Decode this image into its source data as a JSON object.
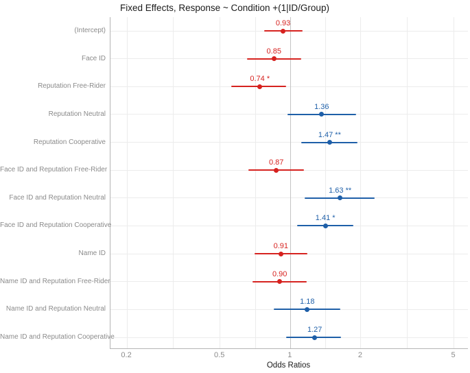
{
  "figure": {
    "title": "Fixed Effects, Response ~ Condition +(1|ID/Group)",
    "xlabel": "Odds Ratios"
  },
  "colors": {
    "or_below_1": "#d6221f",
    "or_above_1": "#1e5fa8",
    "gridline": "#ececec",
    "reference_line": "#c4c4c4",
    "axis_line": "#b4b4b4",
    "axis_text": "#8a8a8a",
    "title_text": "#1a1a1a"
  },
  "chart_data": {
    "type": "scatter",
    "subtype": "forest-dot-whisker",
    "title": "Fixed Effects, Response ~ Condition +(1|ID/Group)",
    "xlabel": "Odds Ratios",
    "ylabel": "",
    "xscale": "log10",
    "xlim": [
      0.17,
      5.74
    ],
    "x_major_ticks": [
      0.2,
      0.5,
      1,
      2,
      5
    ],
    "x_major_tick_labels": [
      "0.2",
      "0.5",
      "1",
      "2",
      "5"
    ],
    "x_minor_ticks": [
      0.3162,
      0.7071,
      1.4142,
      3.1623
    ],
    "reference_line_x": 1,
    "grid": true,
    "legend": "none",
    "categories": [
      "(Intercept)",
      "Face ID",
      "Reputation Free-Rider",
      "Reputation Neutral",
      "Reputation Cooperative",
      "Face ID and Reputation Free-Rider",
      "Face ID and Reputation Neutral",
      "Face ID and Reputation Cooperative",
      "Name ID",
      "Name ID and Reputation Free-Rider",
      "Name ID and Reputation Neutral",
      "Name ID and Reputation Cooperative"
    ],
    "points": [
      {
        "label": "(Intercept)",
        "or": 0.93,
        "ci_low": 0.77,
        "ci_high": 1.13,
        "display": "0.93",
        "significance": "",
        "direction": "below_1"
      },
      {
        "label": "Face ID",
        "or": 0.85,
        "ci_low": 0.65,
        "ci_high": 1.11,
        "display": "0.85",
        "significance": "",
        "direction": "below_1"
      },
      {
        "label": "Reputation Free-Rider",
        "or": 0.74,
        "ci_low": 0.56,
        "ci_high": 0.96,
        "display": "0.74 *",
        "significance": "*",
        "direction": "below_1"
      },
      {
        "label": "Reputation Neutral",
        "or": 1.36,
        "ci_low": 0.97,
        "ci_high": 1.91,
        "display": "1.36",
        "significance": "",
        "direction": "above_1"
      },
      {
        "label": "Reputation Cooperative",
        "or": 1.47,
        "ci_low": 1.11,
        "ci_high": 1.93,
        "display": "1.47 **",
        "significance": "**",
        "direction": "above_1"
      },
      {
        "label": "Face ID and Reputation Free-Rider",
        "or": 0.87,
        "ci_low": 0.66,
        "ci_high": 1.14,
        "display": "0.87",
        "significance": "",
        "direction": "below_1"
      },
      {
        "label": "Face ID and Reputation Neutral",
        "or": 1.63,
        "ci_low": 1.15,
        "ci_high": 2.29,
        "display": "1.63 **",
        "significance": "**",
        "direction": "above_1"
      },
      {
        "label": "Face ID and Reputation Cooperative",
        "or": 1.41,
        "ci_low": 1.07,
        "ci_high": 1.86,
        "display": "1.41 *",
        "significance": "*",
        "direction": "above_1"
      },
      {
        "label": "Name ID",
        "or": 0.91,
        "ci_low": 0.7,
        "ci_high": 1.18,
        "display": "0.91",
        "significance": "",
        "direction": "below_1"
      },
      {
        "label": "Name ID and Reputation Free-Rider",
        "or": 0.9,
        "ci_low": 0.69,
        "ci_high": 1.17,
        "display": "0.90",
        "significance": "",
        "direction": "below_1"
      },
      {
        "label": "Name ID and Reputation Neutral",
        "or": 1.18,
        "ci_low": 0.85,
        "ci_high": 1.63,
        "display": "1.18",
        "significance": "",
        "direction": "above_1"
      },
      {
        "label": "Name ID and Reputation Cooperative",
        "or": 1.27,
        "ci_low": 0.96,
        "ci_high": 1.65,
        "display": "1.27",
        "significance": "",
        "direction": "above_1"
      }
    ]
  }
}
